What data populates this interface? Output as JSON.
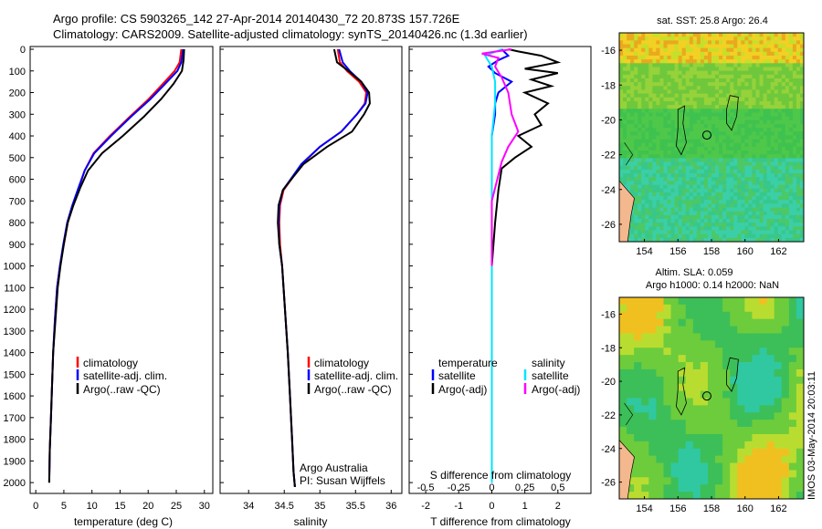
{
  "header": {
    "line1": "Argo profile: CS 5903265_142 27-Apr-2014 20140430_72 20.873S 157.726E",
    "line2": "Climatology: CARS2009. Satellite-adjusted climatology: synTS_20140426.nc (1.3d earlier)"
  },
  "colors": {
    "climatology": "#ff0000",
    "satellite": "#0000ff",
    "argo": "#000000",
    "temp_diff_sat": "#0000ff",
    "sal_diff_sat": "#00e5ff",
    "sal_diff_argo": "#ff00ff"
  },
  "depth_ticks": [
    "0",
    "100",
    "200",
    "300",
    "400",
    "500",
    "600",
    "700",
    "800",
    "900",
    "1000",
    "1100",
    "1200",
    "1300",
    "1400",
    "1500",
    "1600",
    "1700",
    "1800",
    "1900",
    "2000"
  ],
  "legend": {
    "climatology": "climatology",
    "satellite_clim": "satellite-adj. clim.",
    "argo_raw": "Argo(..raw -QC)",
    "temperature": "temperature",
    "salinity": "salinity",
    "satellite": "satellite",
    "argo_adj": "Argo(-adj)"
  },
  "annotations": {
    "institution": "Argo Australia",
    "pi": "PI: Susan Wijffels",
    "timestamp": "IMOS 03-May-2014 20:03:11"
  },
  "chart_data": [
    {
      "type": "line",
      "xlabel": "temperature (deg C)",
      "xlim": [
        -1,
        31.5
      ],
      "ylim": [
        0,
        2050
      ],
      "xticks": [
        "0",
        "5",
        "10",
        "15",
        "20",
        "25",
        "30"
      ],
      "series": [
        {
          "name": "climatology",
          "color": "#ff0000",
          "x": [
            25.9,
            25.6,
            24.7,
            22.6,
            20.1,
            16.8,
            13.2,
            10.3,
            8.7,
            7.7,
            6.6,
            5.7,
            5.0,
            4.3,
            3.8,
            3.4,
            3.1,
            2.9,
            2.7,
            2.5,
            2.4
          ],
          "y": [
            0,
            60,
            100,
            160,
            230,
            310,
            400,
            480,
            560,
            640,
            720,
            800,
            900,
            1000,
            1100,
            1250,
            1400,
            1550,
            1700,
            1850,
            2000
          ]
        },
        {
          "name": "satellite-adj. clim.",
          "color": "#0000ff",
          "x": [
            26.2,
            25.9,
            25.2,
            23.0,
            20.4,
            17.0,
            13.4,
            10.4,
            8.7,
            7.6,
            6.5,
            5.6,
            4.9,
            4.3,
            3.8,
            3.4,
            3.1,
            2.9,
            2.7,
            2.5,
            2.4
          ],
          "y": [
            0,
            60,
            100,
            160,
            230,
            310,
            400,
            480,
            560,
            640,
            720,
            800,
            900,
            1000,
            1100,
            1250,
            1400,
            1550,
            1700,
            1850,
            2000
          ]
        },
        {
          "name": "Argo(..raw -QC)",
          "color": "#000000",
          "x": [
            26.4,
            26.3,
            26.0,
            24.5,
            22.3,
            19.3,
            15.5,
            11.8,
            9.3,
            7.9,
            6.7,
            5.7,
            5.0,
            4.4,
            3.9,
            3.5,
            3.1,
            2.9,
            2.7,
            2.5,
            2.4
          ],
          "y": [
            0,
            50,
            100,
            160,
            230,
            310,
            400,
            480,
            560,
            640,
            720,
            800,
            900,
            1000,
            1100,
            1250,
            1400,
            1550,
            1700,
            1850,
            2000
          ]
        }
      ]
    },
    {
      "type": "line",
      "xlabel": "salinity",
      "xlim": [
        33.6,
        36.15
      ],
      "ylim": [
        0,
        2050
      ],
      "xticks": [
        "34",
        "34.5",
        "35",
        "35.5",
        "36"
      ],
      "series": [
        {
          "name": "climatology",
          "color": "#ff0000",
          "x": [
            35.25,
            35.28,
            35.38,
            35.55,
            35.65,
            35.63,
            35.52,
            35.3,
            35.0,
            34.75,
            34.6,
            34.49,
            34.44,
            34.43,
            34.44,
            34.47,
            34.51,
            34.55,
            34.58,
            34.61,
            34.63,
            34.65
          ],
          "y": [
            0,
            60,
            100,
            150,
            200,
            250,
            300,
            380,
            450,
            530,
            600,
            650,
            720,
            800,
            900,
            1000,
            1200,
            1400,
            1600,
            1800,
            1950,
            2020
          ]
        },
        {
          "name": "satellite-adj. clim.",
          "color": "#0000ff",
          "x": [
            35.27,
            35.32,
            35.42,
            35.58,
            35.67,
            35.64,
            35.52,
            35.3,
            35.0,
            34.74,
            34.59,
            34.48,
            34.43,
            34.42,
            34.43,
            34.47,
            34.51,
            34.55,
            34.58,
            34.61,
            34.63,
            34.65
          ],
          "y": [
            0,
            60,
            100,
            150,
            200,
            250,
            300,
            380,
            450,
            530,
            600,
            650,
            720,
            800,
            900,
            1000,
            1200,
            1400,
            1600,
            1800,
            1950,
            2020
          ]
        },
        {
          "name": "Argo(..raw -QC)",
          "color": "#000000",
          "x": [
            35.2,
            35.24,
            35.4,
            35.58,
            35.69,
            35.7,
            35.62,
            35.45,
            35.1,
            34.77,
            34.6,
            34.48,
            34.42,
            34.41,
            34.43,
            34.47,
            34.51,
            34.55,
            34.58,
            34.61,
            34.63,
            34.65
          ],
          "y": [
            0,
            60,
            100,
            150,
            200,
            250,
            300,
            380,
            450,
            530,
            600,
            650,
            720,
            800,
            900,
            1000,
            1200,
            1400,
            1600,
            1800,
            1950,
            2020
          ]
        }
      ]
    },
    {
      "type": "line",
      "xlabel": "T difference from climatology",
      "xlabel_top": "S difference from climatology",
      "xlim": [
        -2.5,
        3.0
      ],
      "ylim": [
        0,
        2050
      ],
      "xticks": [
        "-2",
        "-1",
        "0",
        "1",
        "2"
      ],
      "xticks_top": [
        "-0.5",
        "-0.25",
        "0",
        "0.25",
        "0.5"
      ],
      "series": [
        {
          "name": "temperature satellite",
          "color": "#0000ff",
          "x": [
            0.3,
            0.5,
            0.2,
            -0.1,
            0.1,
            0.6,
            0.2,
            0.1,
            0.1,
            0.0,
            0.0,
            0.0,
            0.0,
            0.0,
            0.0,
            0.0,
            0.0,
            0.0
          ],
          "y": [
            0,
            30,
            50,
            80,
            110,
            150,
            200,
            250,
            300,
            400,
            500,
            700,
            900,
            1100,
            1300,
            1500,
            1800,
            2000
          ]
        },
        {
          "name": "temperature Argo(-adj)",
          "color": "#000000",
          "x": [
            0.5,
            0.8,
            1.5,
            2.0,
            1.0,
            2.0,
            1.2,
            1.8,
            1.0,
            1.7,
            1.3,
            1.5,
            0.8,
            1.2,
            0.7,
            0.3,
            0.2,
            0.1,
            0.0,
            0.0,
            0.0,
            0.0
          ],
          "y": [
            0,
            10,
            30,
            60,
            90,
            110,
            140,
            170,
            200,
            250,
            300,
            350,
            400,
            450,
            500,
            550,
            650,
            800,
            1000,
            1300,
            1700,
            2000
          ]
        },
        {
          "name": "salinity satellite",
          "color": "#00e5ff",
          "x": [
            0.3,
            -0.2,
            0.0,
            0.1,
            0.1,
            0.0,
            0.0,
            0.0,
            0.0,
            0.0,
            0.0
          ],
          "y": [
            0,
            30,
            80,
            150,
            250,
            400,
            600,
            900,
            1200,
            1600,
            2000
          ]
        },
        {
          "name": "salinity Argo(-adj)",
          "color": "#ff00ff",
          "x": [
            0.6,
            -0.3,
            0.2,
            0.1,
            0.3,
            0.5,
            0.6,
            0.8,
            0.5,
            0.3,
            0.0,
            0.0
          ],
          "y": [
            0,
            20,
            40,
            80,
            130,
            200,
            300,
            380,
            450,
            520,
            700,
            1000
          ]
        }
      ]
    },
    {
      "type": "heatmap",
      "title": "sat. SST: 25.8 Argo: 26.4",
      "xlim": [
        152.5,
        163.5
      ],
      "ylim": [
        -27,
        -15
      ],
      "xticks": [
        "154",
        "156",
        "158",
        "160",
        "162"
      ],
      "yticks": [
        "-16",
        "-18",
        "-20",
        "-22",
        "-24",
        "-26"
      ],
      "marker": {
        "lon": 157.726,
        "lat": -20.873
      }
    },
    {
      "type": "heatmap",
      "title_line1": "Altim. SLA: 0.059",
      "title_line2": "Argo h1000: 0.14 h2000: NaN",
      "xlim": [
        152.5,
        163.5
      ],
      "ylim": [
        -27,
        -15
      ],
      "xticks": [
        "154",
        "156",
        "158",
        "160",
        "162"
      ],
      "yticks": [
        "-16",
        "-18",
        "-20",
        "-22",
        "-24",
        "-26"
      ],
      "marker": {
        "lon": 157.726,
        "lat": -20.873
      }
    }
  ]
}
